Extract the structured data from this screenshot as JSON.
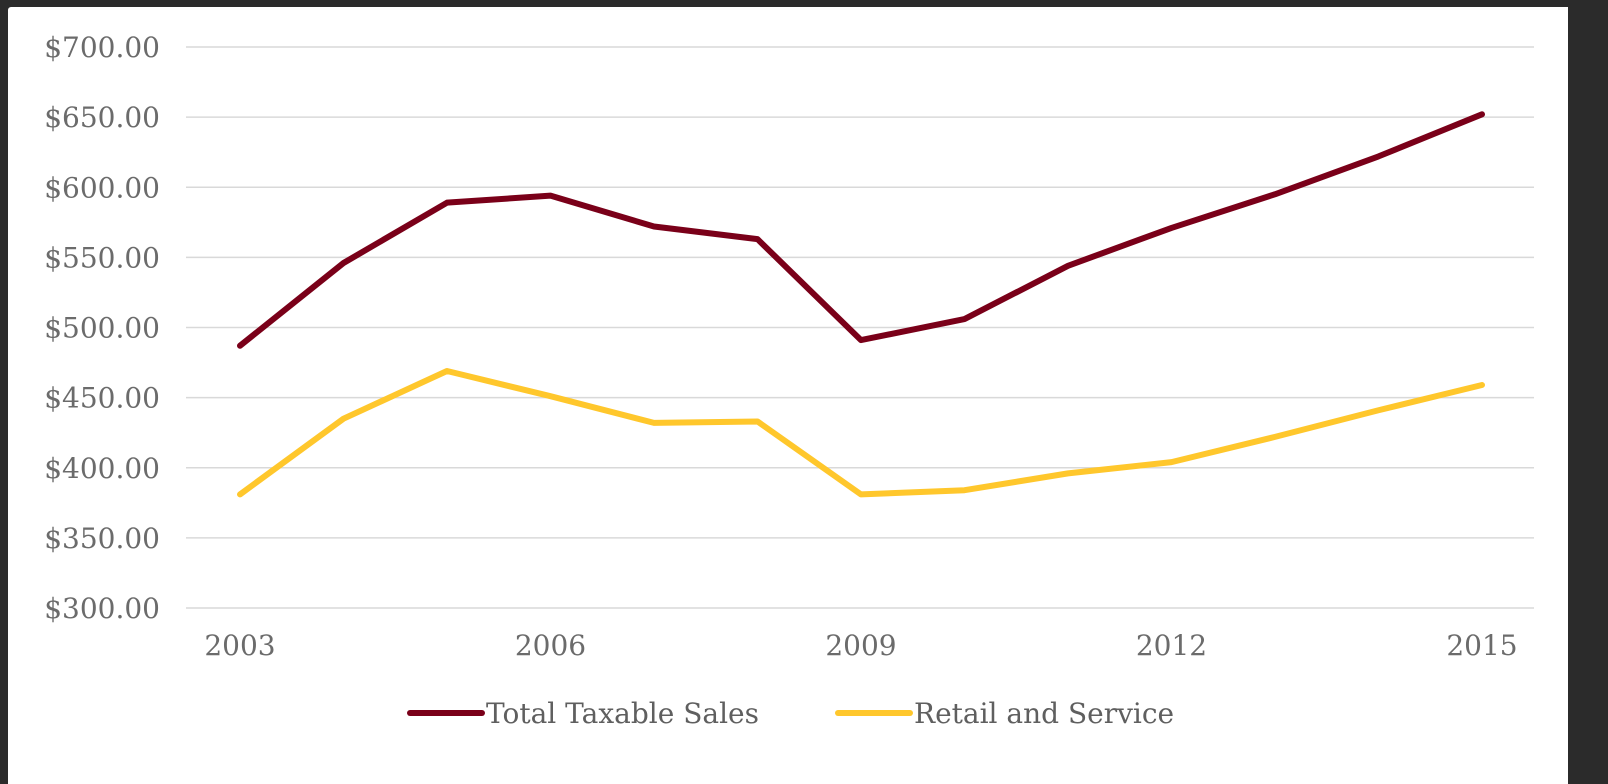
{
  "chart_data": {
    "type": "line",
    "title": "",
    "xlabel": "",
    "ylabel": "",
    "x": [
      2003,
      2004,
      2005,
      2006,
      2007,
      2008,
      2009,
      2010,
      2011,
      2012,
      2013,
      2014,
      2015
    ],
    "x_tick_labels": [
      "2003",
      "2006",
      "2009",
      "2012",
      "2015"
    ],
    "x_tick_values": [
      2003,
      2006,
      2009,
      2012,
      2015
    ],
    "ylim": [
      300,
      700
    ],
    "y_tick_values": [
      300,
      350,
      400,
      450,
      500,
      550,
      600,
      650,
      700
    ],
    "y_tick_labels": [
      "$300.00",
      "$350.00",
      "$400.00",
      "$450.00",
      "$500.00",
      "$550.00",
      "$600.00",
      "$650.00",
      "$700.00"
    ],
    "grid": true,
    "legend_position": "bottom",
    "series": [
      {
        "name": "Total Taxable Sales",
        "color": "#7a0019",
        "values": [
          487,
          546,
          589,
          594,
          572,
          563,
          491,
          506,
          544,
          571,
          595,
          622,
          652
        ]
      },
      {
        "name": "Retail and Service",
        "color": "#ffc72c",
        "values": [
          381,
          435,
          469,
          451,
          432,
          433,
          381,
          384,
          396,
          404,
          422,
          441,
          459
        ]
      }
    ]
  }
}
